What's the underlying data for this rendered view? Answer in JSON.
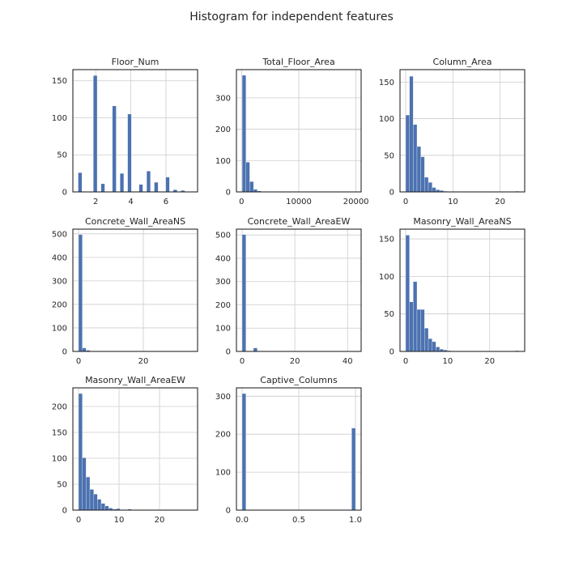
{
  "figure": {
    "title": "Histogram for independent features"
  },
  "colors": {
    "bar": "#4c72b0",
    "grid": "#cccccc",
    "frame": "#262626"
  },
  "chart_data": [
    {
      "type": "bar",
      "title": "Floor_Num",
      "bin_range": [
        1,
        7.5
      ],
      "xlim": [
        0.7,
        7.8
      ],
      "ylim": [
        0,
        165
      ],
      "xticks": [
        2,
        4,
        6
      ],
      "yticks": [
        0,
        50,
        100,
        150
      ],
      "grid": true,
      "values": [
        26,
        0,
        0,
        0,
        157,
        0,
        11,
        0,
        0,
        116,
        0,
        25,
        0,
        105,
        0,
        0,
        10,
        0,
        28,
        0,
        13,
        0,
        0,
        20,
        0,
        3,
        0,
        2,
        0,
        0
      ]
    },
    {
      "type": "bar",
      "title": "Total_Floor_Area",
      "bin_range": [
        100,
        20000
      ],
      "xlim": [
        -900,
        20900
      ],
      "ylim": [
        0,
        390
      ],
      "xticks": [
        0,
        10000,
        20000
      ],
      "yticks": [
        0,
        100,
        200,
        300
      ],
      "grid": true,
      "values": [
        372,
        95,
        33,
        8,
        3,
        1,
        1,
        0,
        0,
        0,
        0,
        0,
        0,
        0,
        0,
        0,
        0,
        0,
        0,
        0,
        0,
        0,
        0,
        0,
        0,
        0,
        0,
        0,
        0,
        1
      ]
    },
    {
      "type": "bar",
      "title": "Column_Area",
      "bin_range": [
        0,
        24
      ],
      "xlim": [
        -1.2,
        25.2
      ],
      "ylim": [
        0,
        167
      ],
      "xticks": [
        0,
        10,
        20
      ],
      "yticks": [
        0,
        50,
        100,
        150
      ],
      "grid": true,
      "values": [
        105,
        158,
        92,
        62,
        48,
        20,
        13,
        6,
        3,
        2,
        1,
        0,
        0,
        0,
        0,
        0,
        0,
        0,
        0,
        0,
        0,
        0,
        0,
        0,
        0,
        0,
        0,
        0,
        0,
        1
      ]
    },
    {
      "type": "bar",
      "title": "Concrete_Wall_AreaNS",
      "bin_range": [
        0,
        35
      ],
      "xlim": [
        -1.75,
        36.75
      ],
      "ylim": [
        0,
        520
      ],
      "xticks": [
        0,
        20
      ],
      "yticks": [
        0,
        100,
        200,
        300,
        400,
        500
      ],
      "grid": true,
      "values": [
        497,
        15,
        5,
        1,
        0,
        0,
        0,
        0,
        0,
        0,
        0,
        0,
        0,
        0,
        0,
        0,
        0,
        0,
        0,
        0,
        0,
        0,
        0,
        0,
        0,
        0,
        0,
        0,
        0,
        1
      ]
    },
    {
      "type": "bar",
      "title": "Concrete_Wall_AreaEW",
      "bin_range": [
        0,
        43
      ],
      "xlim": [
        -2.15,
        45.15
      ],
      "ylim": [
        0,
        525
      ],
      "xticks": [
        0,
        20,
        40
      ],
      "yticks": [
        0,
        100,
        200,
        300,
        400,
        500
      ],
      "grid": true,
      "values": [
        502,
        0,
        0,
        15,
        0,
        0,
        0,
        0,
        0,
        0,
        0,
        0,
        0,
        0,
        0,
        0,
        0,
        0,
        0,
        0,
        0,
        0,
        0,
        0,
        0,
        0,
        0,
        0,
        0,
        1
      ]
    },
    {
      "type": "bar",
      "title": "Masonry_Wall_AreaNS",
      "bin_range": [
        0,
        27
      ],
      "xlim": [
        -1.35,
        28.35
      ],
      "ylim": [
        0,
        163
      ],
      "xticks": [
        0,
        10,
        20
      ],
      "yticks": [
        0,
        50,
        100,
        150
      ],
      "grid": true,
      "values": [
        155,
        66,
        93,
        56,
        56,
        31,
        17,
        13,
        6,
        3,
        2,
        1,
        0,
        0,
        0,
        0,
        0,
        0,
        0,
        0,
        0,
        0,
        0,
        0,
        0,
        0,
        0,
        0,
        0,
        1
      ]
    },
    {
      "type": "bar",
      "title": "Masonry_Wall_AreaEW",
      "bin_range": [
        0,
        28
      ],
      "xlim": [
        -1.4,
        29.4
      ],
      "ylim": [
        0,
        236
      ],
      "xticks": [
        0,
        10,
        20
      ],
      "yticks": [
        0,
        50,
        100,
        150,
        200
      ],
      "grid": true,
      "values": [
        225,
        101,
        64,
        40,
        31,
        21,
        13,
        8,
        4,
        2,
        3,
        1,
        0,
        2,
        0,
        0,
        0,
        0,
        0,
        0,
        0,
        0,
        0,
        0,
        0,
        0,
        0,
        0,
        0,
        0
      ]
    },
    {
      "type": "bar",
      "title": "Captive_Columns",
      "bin_range": [
        0,
        1
      ],
      "xlim": [
        -0.05,
        1.05
      ],
      "ylim": [
        0,
        322
      ],
      "xticks": [
        0.0,
        0.5,
        1.0
      ],
      "xtick_labels": [
        "0.0",
        "0.5",
        "1.0"
      ],
      "yticks": [
        0,
        100,
        200,
        300
      ],
      "grid": true,
      "values": [
        307,
        0,
        0,
        0,
        0,
        0,
        0,
        0,
        0,
        0,
        0,
        0,
        0,
        0,
        0,
        0,
        0,
        0,
        0,
        0,
        0,
        0,
        0,
        0,
        0,
        0,
        0,
        0,
        0,
        216
      ]
    }
  ]
}
